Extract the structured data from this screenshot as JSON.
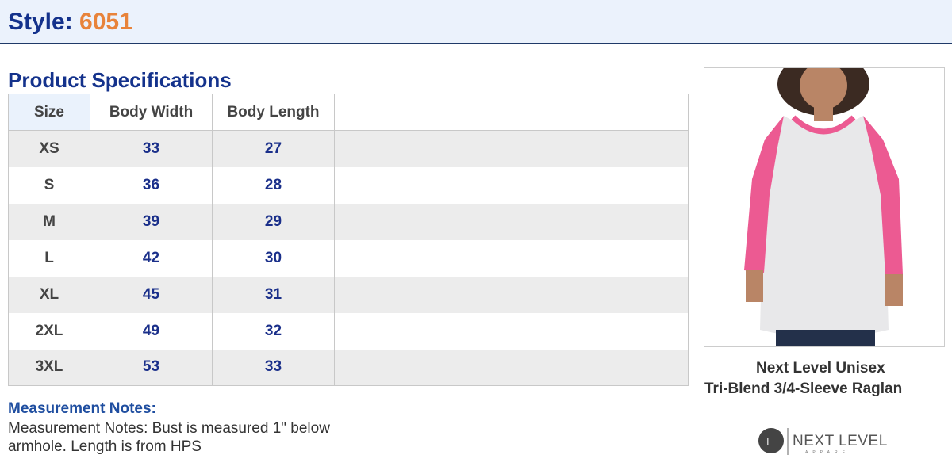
{
  "header": {
    "style_label": "Style:",
    "style_number": "6051"
  },
  "specs": {
    "title": "Product Specifications",
    "columns": [
      "Size",
      "Body Width",
      "Body Length"
    ],
    "rows": [
      [
        "XS",
        "33",
        "27"
      ],
      [
        "S",
        "36",
        "28"
      ],
      [
        "M",
        "39",
        "29"
      ],
      [
        "L",
        "42",
        "30"
      ],
      [
        "XL",
        "45",
        "31"
      ],
      [
        "2XL",
        "49",
        "32"
      ],
      [
        "3XL",
        "53",
        "33"
      ]
    ]
  },
  "notes": {
    "title": "Measurement Notes:",
    "text": "Measurement Notes: Bust is measured 1\" below armhole. Length is from HPS"
  },
  "product": {
    "name_line1": "Next Level Unisex",
    "name_line2": "Tri-Blend 3/4-Sleeve Raglan",
    "colors": {
      "body": "#e8e8ea",
      "sleeves": "#ec5a92"
    }
  },
  "brand": {
    "logo_text": "NEXT LEVEL APPAREL"
  }
}
